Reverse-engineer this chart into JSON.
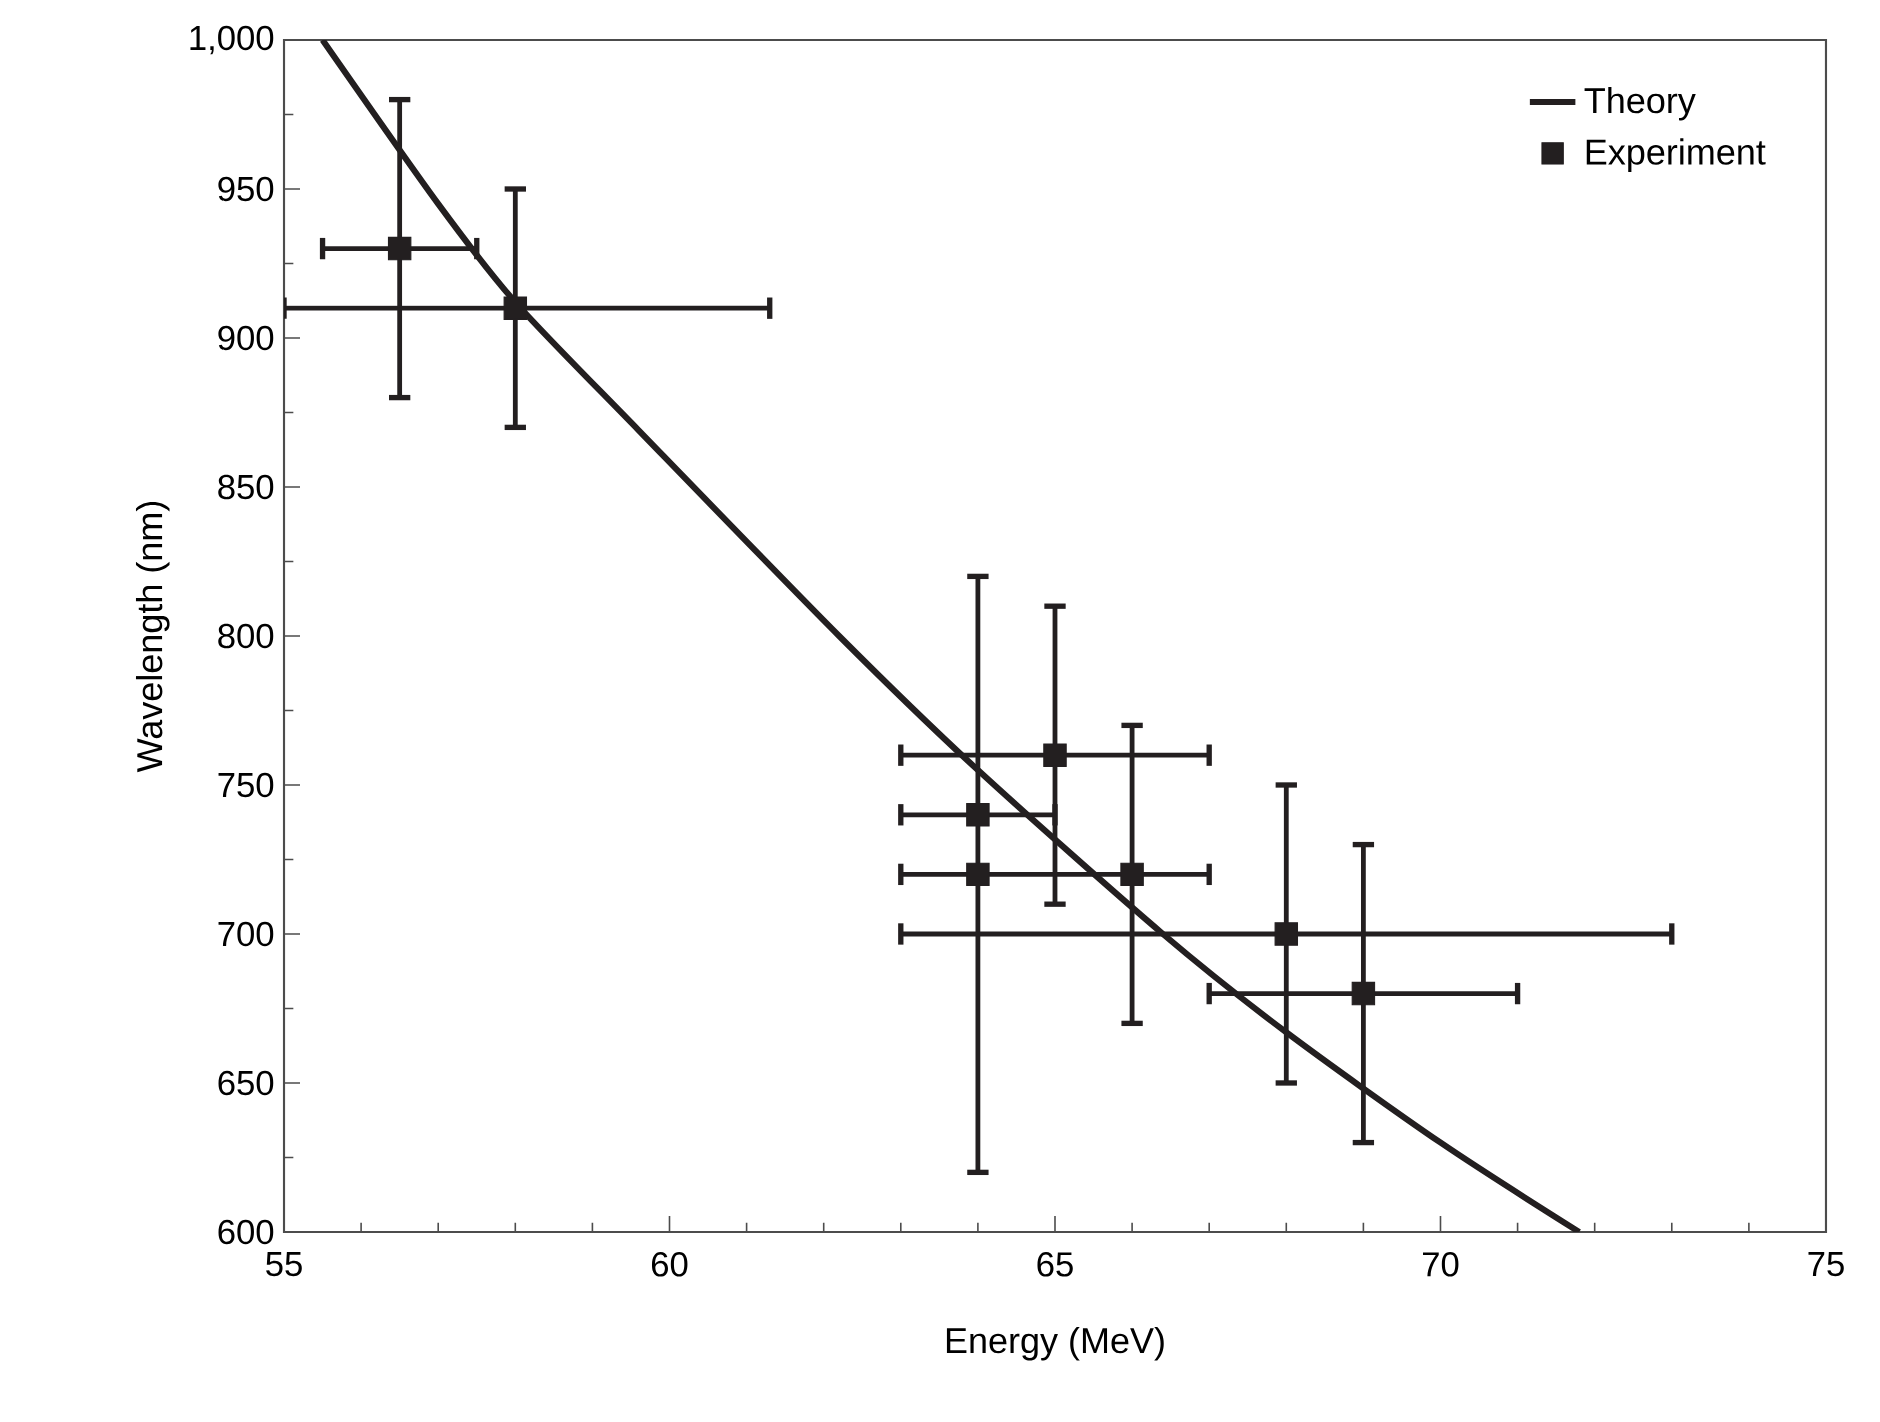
{
  "chart_data": {
    "type": "scatter",
    "xlabel": "Energy (MeV)",
    "ylabel": "Wavelength (nm)",
    "xlim": [
      55,
      75
    ],
    "xticks": [
      55,
      60,
      65,
      70,
      75
    ],
    "ylim": [
      600,
      1000
    ],
    "yticks": [
      600,
      650,
      700,
      750,
      800,
      850,
      900,
      950,
      {
        "value": 1000,
        "label": "1,000"
      }
    ],
    "grid": false,
    "legend": "top right",
    "series": [
      {
        "name": "Theory",
        "type": "line",
        "color": "#231f20",
        "line_style": "solid",
        "marker": "none",
        "x": [
          55.5,
          57,
          58,
          59.6,
          62.2,
          64,
          66.4,
          68,
          70,
          71.8
        ],
        "values": [
          1000,
          945,
          912,
          869,
          800,
          755,
          700,
          667,
          630,
          600
        ]
      },
      {
        "name": "Experiment",
        "color": "#231f20",
        "marker": "square",
        "x": [
          56.5,
          58,
          64,
          64,
          65,
          66,
          68,
          69
        ],
        "values": [
          930,
          910,
          740,
          720,
          760,
          720,
          700,
          680
        ],
        "errors": [
          [
            880,
            980
          ],
          [
            870,
            950
          ],
          null,
          [
            620,
            820
          ],
          [
            710,
            810
          ],
          [
            670,
            770
          ],
          [
            650,
            750
          ],
          [
            630,
            730
          ]
        ],
        "xerrors": [
          [
            55.5,
            57.5
          ],
          [
            55,
            61.3
          ],
          [
            63,
            65
          ],
          null,
          [
            63,
            67
          ],
          [
            63,
            67
          ],
          [
            63,
            73
          ],
          [
            67,
            71
          ]
        ]
      }
    ]
  }
}
